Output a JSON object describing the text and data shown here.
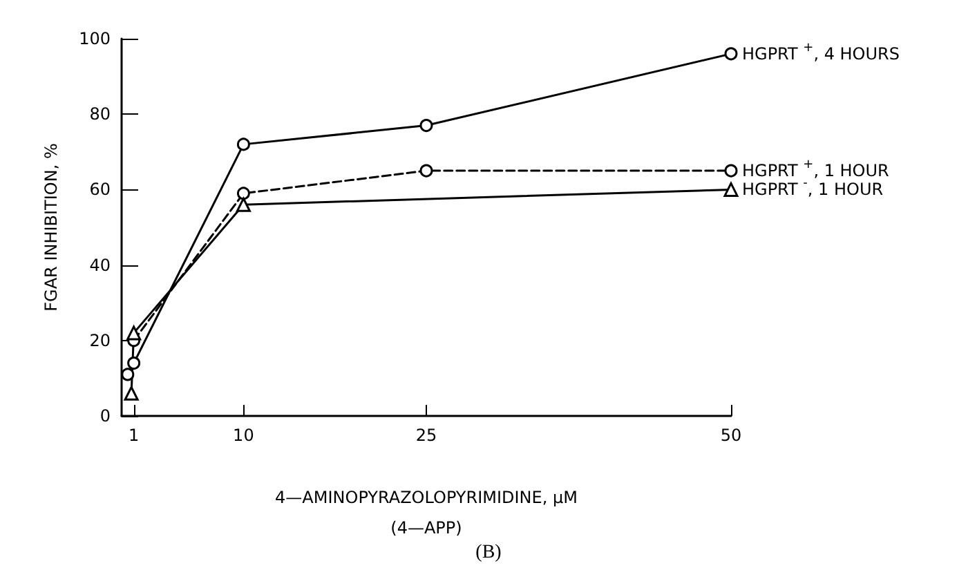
{
  "chart_data": {
    "type": "line",
    "xlabel": "4—AMINOPYRAZOLOPYRIMIDINE, μM\n(4—APP)",
    "ylabel": "FGAR INHIBITION, %",
    "annotations": [
      "(B)"
    ],
    "xlim": [
      0,
      50
    ],
    "xticks": [
      1,
      10,
      25,
      50
    ],
    "ylim": [
      0,
      100
    ],
    "yticks": [
      0,
      20,
      40,
      60,
      80,
      100
    ],
    "grid": false,
    "legend": false,
    "series": [
      {
        "name": "HGPRT $^{+}$, 4 HOURS",
        "color": "#000000",
        "marker": "circle",
        "line_style": "solid",
        "x": [
          0.5,
          1,
          10,
          25,
          50
        ],
        "values": [
          11,
          14,
          72,
          77,
          96
        ]
      },
      {
        "name": "HGPRT $^{+}$, 1 HOUR",
        "color": "#000000",
        "marker": "circle",
        "line_style": "dashed",
        "x": [
          1,
          10,
          25,
          50
        ],
        "values": [
          20,
          59,
          65,
          65
        ]
      },
      {
        "name": "HGPRT $^{-}$, 1 HOUR",
        "color": "#000000",
        "marker": "triangle",
        "line_style": "solid",
        "x": [
          0.8,
          1,
          10,
          50
        ],
        "values": [
          6,
          22,
          56,
          60
        ]
      }
    ]
  }
}
